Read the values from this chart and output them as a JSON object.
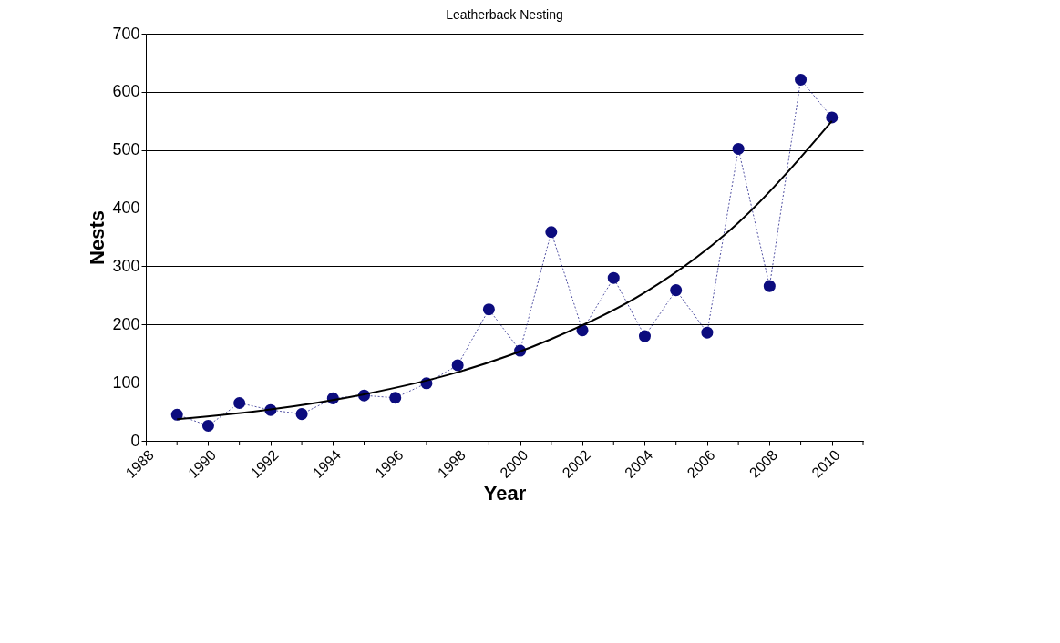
{
  "chart_data": {
    "type": "line",
    "title": "Leatherback Nesting",
    "xlabel": "Year",
    "ylabel": "Nests",
    "x": [
      1989,
      1990,
      1991,
      1992,
      1993,
      1994,
      1995,
      1996,
      1997,
      1998,
      1999,
      2000,
      2001,
      2002,
      2003,
      2004,
      2005,
      2006,
      2007,
      2008,
      2009,
      2010
    ],
    "series": [
      {
        "color": "#0c0c7e",
        "values": [
          45,
          26,
          65,
          53,
          46,
          73,
          78,
          74,
          99,
          130,
          226,
          155,
          359,
          190,
          280,
          180,
          259,
          186,
          502,
          266,
          621,
          556
        ],
        "marker": "circle",
        "line_style": "dotted"
      },
      {
        "type": "line",
        "color": "#000000",
        "x": [
          1989,
          1992,
          1995,
          1998,
          2001,
          2004,
          2007,
          2010
        ],
        "values": [
          37,
          54,
          80,
          118,
          175,
          255,
          375,
          550
        ],
        "marker": "none",
        "line_style": "solid"
      }
    ],
    "xlim": [
      1988,
      2011
    ],
    "xticks": [
      1988,
      {
        "value": 1989,
        "label": null
      },
      1990,
      {
        "value": 1991,
        "label": null
      },
      1992,
      {
        "value": 1993,
        "label": null
      },
      1994,
      {
        "value": 1995,
        "label": null
      },
      1996,
      {
        "value": 1997,
        "label": null
      },
      1998,
      {
        "value": 1999,
        "label": null
      },
      2000,
      {
        "value": 2001,
        "label": null
      },
      2002,
      {
        "value": 2003,
        "label": null
      },
      2004,
      {
        "value": 2005,
        "label": null
      },
      2006,
      {
        "value": 2007,
        "label": null
      },
      2008,
      {
        "value": 2009,
        "label": null
      },
      2010,
      {
        "value": 2011,
        "label": null
      }
    ],
    "ylim": [
      0,
      700
    ],
    "yticks": [
      0,
      100,
      200,
      300,
      400,
      500,
      600,
      700
    ],
    "grid": "y"
  }
}
